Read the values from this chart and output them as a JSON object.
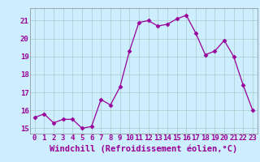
{
  "x": [
    0,
    1,
    2,
    3,
    4,
    5,
    6,
    7,
    8,
    9,
    10,
    11,
    12,
    13,
    14,
    15,
    16,
    17,
    18,
    19,
    20,
    21,
    22,
    23
  ],
  "y": [
    15.6,
    15.8,
    15.3,
    15.5,
    15.5,
    15.0,
    15.1,
    16.6,
    16.3,
    17.3,
    19.3,
    20.9,
    21.0,
    20.7,
    20.8,
    21.1,
    21.3,
    20.3,
    19.1,
    19.3,
    19.9,
    19.0,
    17.4,
    16.0
  ],
  "xlim": [
    -0.5,
    23.5
  ],
  "ylim": [
    14.7,
    21.7
  ],
  "yticks": [
    15,
    16,
    17,
    18,
    19,
    20,
    21
  ],
  "xticks": [
    0,
    1,
    2,
    3,
    4,
    5,
    6,
    7,
    8,
    9,
    10,
    11,
    12,
    13,
    14,
    15,
    16,
    17,
    18,
    19,
    20,
    21,
    22,
    23
  ],
  "xlabel": "Windchill (Refroidissement éolien,°C)",
  "line_color": "#990099",
  "marker": "D",
  "marker_size": 2.5,
  "bg_color": "#cceeff",
  "grid_color": "#aacccc",
  "tick_fontsize": 6.5,
  "xlabel_fontsize": 7.5
}
